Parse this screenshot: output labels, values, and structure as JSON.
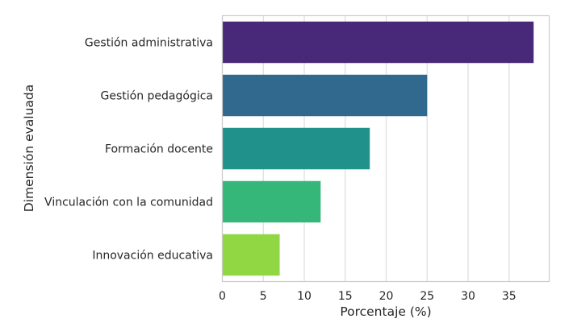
{
  "chart_data": {
    "type": "bar",
    "orientation": "horizontal",
    "title": "",
    "xlabel": "Porcentaje (%)",
    "ylabel": "Dimensión evaluada",
    "categories": [
      "Gestión administrativa",
      "Gestión pedagógica",
      "Formación docente",
      "Vinculación con la comunidad",
      "Innovación educativa"
    ],
    "values": [
      38,
      25,
      18,
      12,
      7
    ],
    "colors": [
      "#482878",
      "#31688e",
      "#21918c",
      "#35b779",
      "#90d743"
    ],
    "xlim": [
      0,
      39.9
    ],
    "xticks": [
      0,
      5,
      10,
      15,
      20,
      25,
      30,
      35
    ],
    "grid": "vertical",
    "legend": "none"
  }
}
